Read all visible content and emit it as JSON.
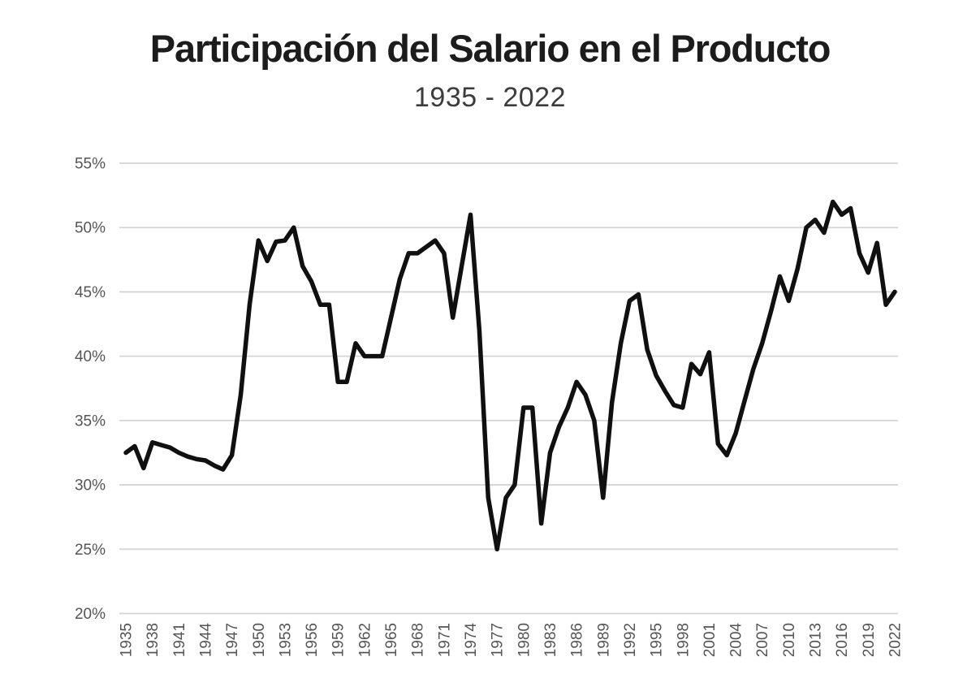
{
  "header": {
    "title": "Participación del Salario en el Producto",
    "subtitle": "1935 - 2022"
  },
  "chart_data": {
    "type": "line",
    "title": "Participación del Salario en el Producto",
    "subtitle": "1935 - 2022",
    "xlabel": "",
    "ylabel": "",
    "ylim": [
      20,
      55
    ],
    "grid": true,
    "legend": false,
    "x_tick_step_years": 3,
    "y_tick_labels": [
      "55%",
      "50%",
      "45%",
      "40%",
      "35%",
      "30%",
      "25%",
      "20%"
    ],
    "x_tick_labels": [
      "1935",
      "1938",
      "1941",
      "1944",
      "1947",
      "1950",
      "1953",
      "1956",
      "1959",
      "1962",
      "1965",
      "1968",
      "1971",
      "1974",
      "1977",
      "1980",
      "1983",
      "1986",
      "1989",
      "1992",
      "1995",
      "1998",
      "2001",
      "2004",
      "2007",
      "2010",
      "2013",
      "2016",
      "2019",
      "2022"
    ],
    "series_name": "Participación del salario en el producto (%)",
    "years": [
      1935,
      1936,
      1937,
      1938,
      1939,
      1940,
      1941,
      1942,
      1943,
      1944,
      1945,
      1946,
      1947,
      1948,
      1949,
      1950,
      1951,
      1952,
      1953,
      1954,
      1955,
      1956,
      1957,
      1958,
      1959,
      1960,
      1961,
      1962,
      1963,
      1964,
      1965,
      1966,
      1967,
      1968,
      1969,
      1970,
      1971,
      1972,
      1973,
      1974,
      1975,
      1976,
      1977,
      1978,
      1979,
      1980,
      1981,
      1982,
      1983,
      1984,
      1985,
      1986,
      1987,
      1988,
      1989,
      1990,
      1991,
      1992,
      1993,
      1994,
      1995,
      1996,
      1997,
      1998,
      1999,
      2000,
      2001,
      2002,
      2003,
      2004,
      2005,
      2006,
      2007,
      2008,
      2009,
      2010,
      2011,
      2012,
      2013,
      2014,
      2015,
      2016,
      2017,
      2018,
      2019,
      2020,
      2021,
      2022
    ],
    "values_percent": [
      32.5,
      33,
      31.3,
      33.3,
      33.1,
      32.9,
      32.5,
      32.2,
      32,
      31.9,
      31.5,
      31.2,
      32.3,
      37,
      44,
      49,
      47.4,
      48.9,
      49,
      50,
      47,
      45.8,
      44,
      44,
      38,
      38,
      41,
      40,
      40,
      40,
      43,
      46,
      48,
      48,
      48.5,
      49,
      48,
      43,
      47,
      51,
      42,
      29,
      25,
      29,
      30,
      36,
      36,
      27,
      32.5,
      34.5,
      36,
      38,
      37,
      35,
      29,
      36.4,
      41,
      44.3,
      44.8,
      40.5,
      38.5,
      37.3,
      36.2,
      36,
      39.4,
      38.6,
      40.3,
      33.2,
      32.3,
      34,
      36.5,
      39,
      41,
      43.5,
      46.2,
      44.3,
      46.8,
      50,
      50.6,
      49.6,
      52,
      51,
      51.5,
      48,
      46.5,
      48.8,
      44,
      45
    ],
    "colors": {
      "line": "#101010",
      "grid": "#d4d4d4",
      "axis_labels": "#555555",
      "title": "#1c1c1c",
      "subtitle": "#3c3c3c",
      "background": "#ffffff"
    }
  }
}
